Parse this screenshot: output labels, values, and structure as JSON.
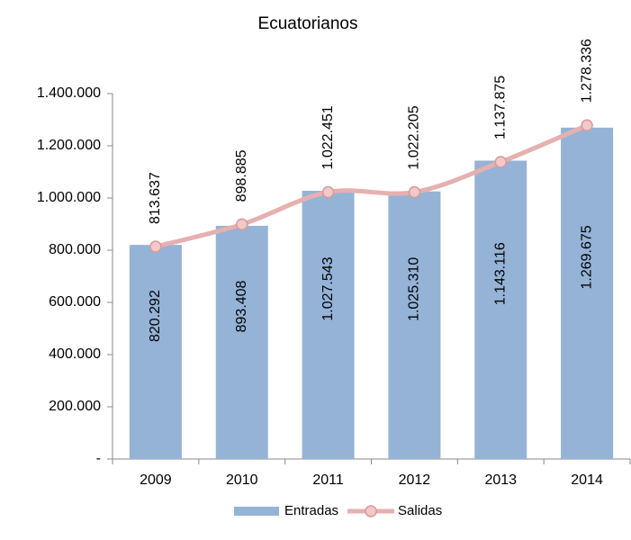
{
  "chart_data": {
    "type": "bar_line",
    "title": "Ecuatorianos",
    "categories": [
      "2009",
      "2010",
      "2011",
      "2012",
      "2013",
      "2014"
    ],
    "series": [
      {
        "name": "Entradas",
        "type": "bar",
        "color": "#95b3d7",
        "values": [
          820292,
          893408,
          1027543,
          1025310,
          1143116,
          1269675
        ],
        "value_labels": [
          "820.292",
          "893.408",
          "1.027.543",
          "1.025.310",
          "1.143.116",
          "1.269.675"
        ]
      },
      {
        "name": "Salidas",
        "type": "line",
        "color": "#e6b0b0",
        "values": [
          813637,
          898885,
          1022451,
          1022205,
          1137875,
          1278336
        ],
        "value_labels": [
          "813.637",
          "898.885",
          "1.022.451",
          "1.022.205",
          "1.137.875",
          "1.278.336"
        ]
      }
    ],
    "ylim": [
      0,
      1400000
    ],
    "yticks": [
      {
        "value": 0,
        "label": "-"
      },
      {
        "value": 200000,
        "label": "200.000"
      },
      {
        "value": 400000,
        "label": "400.000"
      },
      {
        "value": 600000,
        "label": "600.000"
      },
      {
        "value": 800000,
        "label": "800.000"
      },
      {
        "value": 1000000,
        "label": "1.000.000"
      },
      {
        "value": 1200000,
        "label": "1.200.000"
      },
      {
        "value": 1400000,
        "label": "1.400.000"
      }
    ],
    "legend": "bottom"
  }
}
